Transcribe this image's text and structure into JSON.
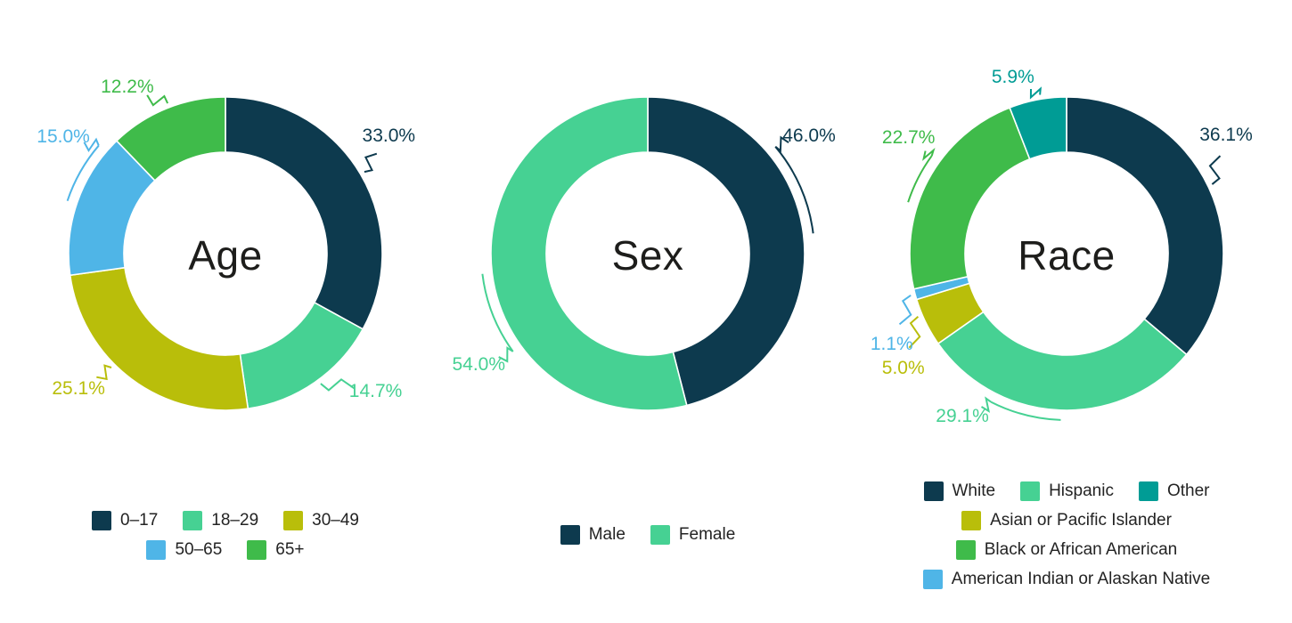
{
  "background": "#ffffff",
  "chart_data": [
    {
      "type": "pie",
      "subtype": "donut",
      "title": "Age",
      "labels": [
        "0–17",
        "18–29",
        "30–49",
        "50–65",
        "65+"
      ],
      "values": [
        33.0,
        14.7,
        25.1,
        15.0,
        12.2
      ],
      "display_values": [
        "33.0%",
        "14.7%",
        "25.1%",
        "15.0%",
        "12.2%"
      ],
      "colors": [
        "#0d3a4e",
        "#46d193",
        "#b9be0a",
        "#4fb5e7",
        "#3fbb4a"
      ],
      "legend_order": [
        0,
        1,
        2,
        3,
        4
      ],
      "legend_position": "bottom",
      "start_angle_deg": 0,
      "direction": "clockwise"
    },
    {
      "type": "pie",
      "subtype": "donut",
      "title": "Sex",
      "labels": [
        "Male",
        "Female"
      ],
      "values": [
        46.0,
        54.0
      ],
      "display_values": [
        "46.0%",
        "54.0%"
      ],
      "colors": [
        "#0d3a4e",
        "#46d193"
      ],
      "legend_order": [
        0,
        1
      ],
      "legend_position": "bottom",
      "start_angle_deg": 0,
      "direction": "clockwise"
    },
    {
      "type": "pie",
      "subtype": "donut",
      "title": "Race",
      "labels": [
        "White",
        "Hispanic",
        "Asian or Pacific Islander",
        "American Indian or Alaskan Native",
        "Black or African American",
        "Other"
      ],
      "values": [
        36.1,
        29.1,
        5.0,
        1.1,
        22.7,
        5.9
      ],
      "display_values": [
        "36.1%",
        "29.1%",
        "5.0%",
        "1.1%",
        "22.7%",
        "5.9%"
      ],
      "colors": [
        "#0d3a4e",
        "#46d193",
        "#b9be0a",
        "#4fb5e7",
        "#3fbb4a",
        "#009c95"
      ],
      "legend_order": [
        0,
        1,
        5,
        2,
        4,
        3
      ],
      "legend_position": "bottom",
      "start_angle_deg": 0,
      "direction": "clockwise"
    }
  ]
}
